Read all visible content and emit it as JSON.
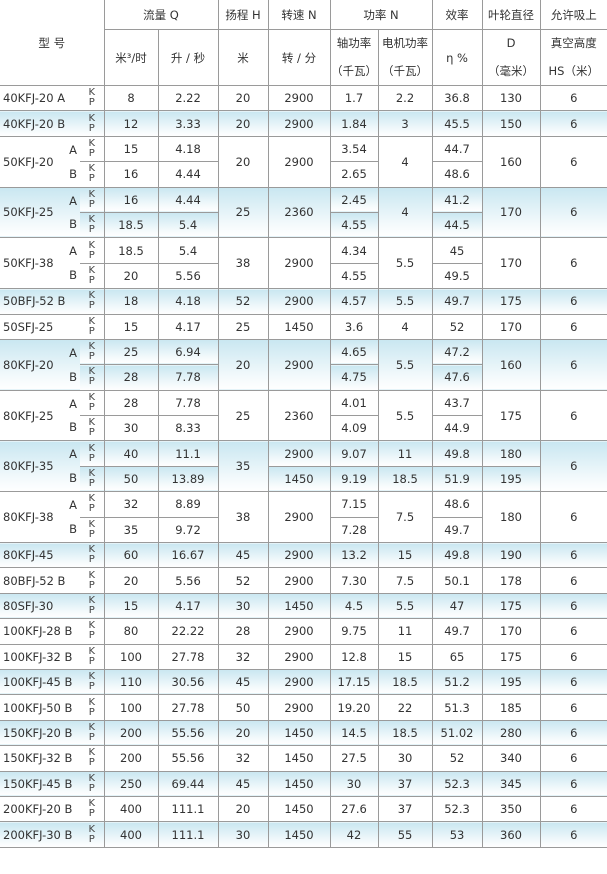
{
  "header": {
    "model": "型 号",
    "flow": "流量 Q",
    "flow_m3h": "米³/时",
    "flow_ls": "升 / 秒",
    "head": "扬程 H",
    "head_unit": "米",
    "speed": "转速 N",
    "speed_unit": "转 / 分",
    "power": "功率 N",
    "shaft": "轴功率",
    "shaft_unit": "（千瓦）",
    "motor": "电机功率",
    "motor_unit": "（千瓦）",
    "eff": "效率",
    "eff_unit": "η %",
    "imp": "叶轮直径",
    "imp_d": "D",
    "imp_unit": "（毫米）",
    "hs": "允许吸上",
    "hs2": "真空高度",
    "hs3": "HS（米）"
  },
  "kp": [
    "K",
    "P"
  ],
  "rows": [
    {
      "model": "40KFJ-20 A",
      "shaded": false,
      "v": [
        "8",
        "2.22",
        "20",
        "2900",
        "1.7",
        "2.2",
        "36.8",
        "130",
        "6"
      ]
    },
    {
      "model": "40KFJ-20 B",
      "shaded": true,
      "v": [
        "12",
        "3.33",
        "20",
        "2900",
        "1.84",
        "3",
        "45.5",
        "150",
        "6"
      ]
    },
    {
      "model": "50KFJ-20",
      "variants": [
        "A",
        "B"
      ],
      "shaded": false,
      "v": [
        [
          "15",
          "16"
        ],
        [
          "4.18",
          "4.44"
        ],
        "20",
        "2900",
        [
          "3.54",
          "2.65"
        ],
        "4",
        [
          "44.7",
          "48.6"
        ],
        "160",
        "6"
      ]
    },
    {
      "model": "50KFJ-25",
      "variants": [
        "A",
        "B"
      ],
      "shaded": true,
      "v": [
        [
          "16",
          "18.5"
        ],
        [
          "4.44",
          "5.4"
        ],
        "25",
        "2360",
        [
          "2.45",
          "4.55"
        ],
        "4",
        [
          "41.2",
          "44.5"
        ],
        "170",
        "6"
      ]
    },
    {
      "model": "50KFJ-38",
      "variants": [
        "A",
        "B"
      ],
      "shaded": false,
      "v": [
        [
          "18.5",
          "20"
        ],
        [
          "5.4",
          "5.56"
        ],
        "38",
        "2900",
        [
          "4.34",
          "4.55"
        ],
        "5.5",
        [
          "45",
          "49.5"
        ],
        "170",
        "6"
      ]
    },
    {
      "model": "50BFJ-52 B",
      "shaded": true,
      "v": [
        "18",
        "4.18",
        "52",
        "2900",
        "4.57",
        "5.5",
        "49.7",
        "175",
        "6"
      ]
    },
    {
      "model": "50SFJ-25",
      "shaded": false,
      "v": [
        "15",
        "4.17",
        "25",
        "1450",
        "3.6",
        "4",
        "52",
        "170",
        "6"
      ]
    },
    {
      "model": "80KFJ-20",
      "variants": [
        "A",
        "B"
      ],
      "shaded": true,
      "v": [
        [
          "25",
          "28"
        ],
        [
          "6.94",
          "7.78"
        ],
        "20",
        "2900",
        [
          "4.65",
          "4.75"
        ],
        "5.5",
        [
          "47.2",
          "47.6"
        ],
        "160",
        "6"
      ]
    },
    {
      "model": "80KFJ-25",
      "variants": [
        "A",
        "B"
      ],
      "shaded": false,
      "v": [
        [
          "28",
          "30"
        ],
        [
          "7.78",
          "8.33"
        ],
        "25",
        "2360",
        [
          "4.01",
          "4.09"
        ],
        "5.5",
        [
          "43.7",
          "44.9"
        ],
        "175",
        "6"
      ]
    },
    {
      "model": "80KFJ-35",
      "variants": [
        "A",
        "B"
      ],
      "shaded": true,
      "v": [
        [
          "40",
          "50"
        ],
        [
          "11.1",
          "13.89"
        ],
        "35",
        [
          "2900",
          "1450"
        ],
        [
          "9.07",
          "9.19"
        ],
        [
          "11",
          "18.5"
        ],
        [
          "49.8",
          "51.9"
        ],
        [
          "180",
          "195"
        ],
        "6"
      ]
    },
    {
      "model": "80KFJ-38",
      "variants": [
        "A",
        "B"
      ],
      "shaded": false,
      "v": [
        [
          "32",
          "35"
        ],
        [
          "8.89",
          "9.72"
        ],
        "38",
        "2900",
        [
          "7.15",
          "7.28"
        ],
        "7.5",
        [
          "48.6",
          "49.7"
        ],
        "180",
        "6"
      ]
    },
    {
      "model": "80KFJ-45",
      "shaded": true,
      "v": [
        "60",
        "16.67",
        "45",
        "2900",
        "13.2",
        "15",
        "49.8",
        "190",
        "6"
      ]
    },
    {
      "model": "80BFJ-52 B",
      "shaded": false,
      "v": [
        "20",
        "5.56",
        "52",
        "2900",
        "7.30",
        "7.5",
        "50.1",
        "178",
        "6"
      ]
    },
    {
      "model": "80SFJ-30",
      "shaded": true,
      "v": [
        "15",
        "4.17",
        "30",
        "1450",
        "4.5",
        "5.5",
        "47",
        "175",
        "6"
      ]
    },
    {
      "model": "100KFJ-28 B",
      "shaded": false,
      "v": [
        "80",
        "22.22",
        "28",
        "2900",
        "9.75",
        "11",
        "49.7",
        "170",
        "6"
      ]
    },
    {
      "model": "100KFJ-32 B",
      "shaded": false,
      "v": [
        "100",
        "27.78",
        "32",
        "2900",
        "12.8",
        "15",
        "65",
        "175",
        "6"
      ]
    },
    {
      "model": "100KFJ-45 B",
      "shaded": true,
      "v": [
        "110",
        "30.56",
        "45",
        "2900",
        "17.15",
        "18.5",
        "51.2",
        "195",
        "6"
      ]
    },
    {
      "model": "100KFJ-50 B",
      "shaded": false,
      "v": [
        "100",
        "27.78",
        "50",
        "2900",
        "19.20",
        "22",
        "51.3",
        "185",
        "6"
      ]
    },
    {
      "model": "150KFJ-20 B",
      "shaded": true,
      "v": [
        "200",
        "55.56",
        "20",
        "1450",
        "14.5",
        "18.5",
        "51.02",
        "280",
        "6"
      ]
    },
    {
      "model": "150KFJ-32 B",
      "shaded": false,
      "v": [
        "200",
        "55.56",
        "32",
        "1450",
        "27.5",
        "30",
        "52",
        "340",
        "6"
      ]
    },
    {
      "model": "150KFJ-45 B",
      "shaded": true,
      "v": [
        "250",
        "69.44",
        "45",
        "1450",
        "30",
        "37",
        "52.3",
        "345",
        "6"
      ]
    },
    {
      "model": "200KFJ-20 B",
      "shaded": false,
      "v": [
        "400",
        "111.1",
        "20",
        "1450",
        "27.6",
        "37",
        "52.3",
        "350",
        "6"
      ]
    },
    {
      "model": "200KFJ-30 B",
      "shaded": true,
      "v": [
        "400",
        "111.1",
        "30",
        "1450",
        "42",
        "55",
        "53",
        "360",
        "6"
      ]
    }
  ]
}
